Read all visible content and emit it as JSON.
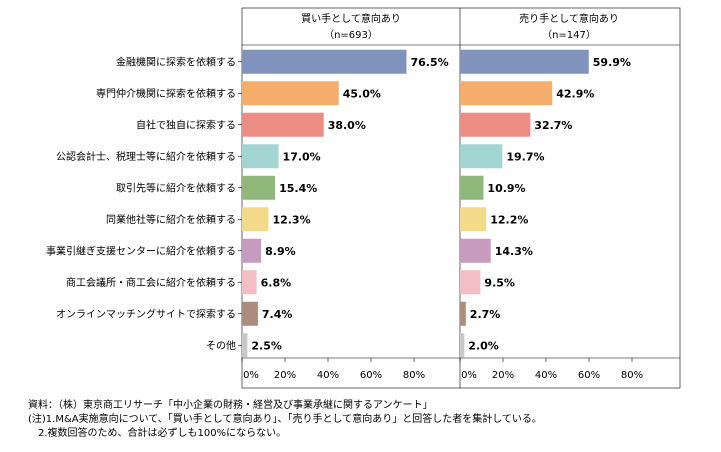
{
  "chart_data": {
    "type": "bar",
    "orientation": "horizontal",
    "categories": [
      "金融機関に探索を依頼する",
      "専門仲介機関に探索を依頼する",
      "自社で独自に探索する",
      "公認会計士、税理士等に紹介を依頼する",
      "取引先等に紹介を依頼する",
      "同業他社等に紹介を依頼する",
      "事業引継ぎ支援センターに紹介を依頼する",
      "商工会議所・商工会に紹介を依頼する",
      "オンラインマッチングサイトで探索する",
      "その他"
    ],
    "colors": [
      "#7f93bd",
      "#f5ae6a",
      "#ec8d83",
      "#a3d6d2",
      "#8fb87a",
      "#f3d98a",
      "#c69bbe",
      "#f3bfc4",
      "#ae8c7c",
      "#c8c8c8"
    ],
    "series": [
      {
        "title": "買い手として意向あり",
        "n": "（n=693）",
        "values": [
          76.5,
          45.0,
          38.0,
          17.0,
          15.4,
          12.3,
          8.9,
          6.8,
          7.4,
          2.5
        ],
        "labels": [
          "76.5%",
          "45.0%",
          "38.0%",
          "17.0%",
          "15.4%",
          "12.3%",
          "8.9%",
          "6.8%",
          "7.4%",
          "2.5%"
        ]
      },
      {
        "title": "売り手として意向あり",
        "n": "（n=147）",
        "values": [
          59.9,
          42.9,
          32.7,
          19.7,
          10.9,
          12.2,
          14.3,
          9.5,
          2.7,
          2.0
        ],
        "labels": [
          "59.9%",
          "42.9%",
          "32.7%",
          "19.7%",
          "10.9%",
          "12.2%",
          "14.3%",
          "9.5%",
          "2.7%",
          "2.0%"
        ]
      }
    ],
    "xlim": [
      0,
      100
    ],
    "xticks": [
      "0%",
      "20%",
      "40%",
      "60%",
      "80%"
    ],
    "xtick_values": [
      0,
      20,
      40,
      60,
      80
    ],
    "grid": false
  },
  "notes": {
    "source": "資料：（株）東京商工リサーチ「中小企業の財務・経営及び事業承継に関するアンケート」",
    "note1": "(注)1.M&A実施意向について、「買い手として意向あり」、「売り手として意向あり」と回答した者を集計している。",
    "note2": "2.複数回答のため、合計は必ずしも100%にならない。"
  }
}
